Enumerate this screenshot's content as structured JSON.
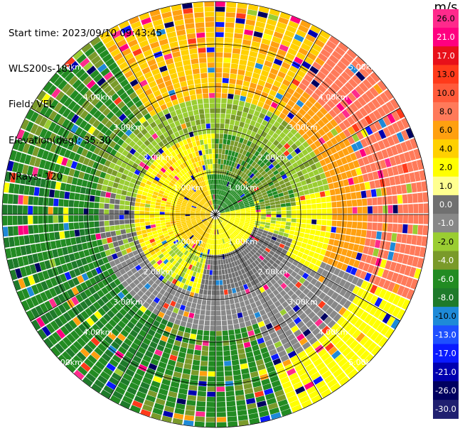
{
  "header": {
    "start_time": "Start time: 2023/09/10 09:43:45",
    "station": "WLS200s-181",
    "field": "Field: VEL",
    "elevation": "Elevation(deg): 35.30",
    "nrays": "NRays: 120"
  },
  "colorbar": {
    "unit": "m/s",
    "ticks": [
      "26.0",
      "21.0",
      "17.0",
      "13.0",
      "10.0",
      "8.0",
      "6.0",
      "4.0",
      "2.0",
      "1.0",
      "0.0",
      "-1.0",
      "-2.0",
      "-4.0",
      "-6.0",
      "-8.0",
      "-10.0",
      "-13.0",
      "-17.0",
      "-21.0",
      "-26.0",
      "-30.0"
    ],
    "colors": [
      "#ff2a8c",
      "#ff0080",
      "#e8101a",
      "#ff3a1a",
      "#ff5a3a",
      "#ff7a5a",
      "#ffa010",
      "#ffd000",
      "#ffff00",
      "#ffff90",
      "#707070",
      "#888888",
      "#9acd32",
      "#7a9a2a",
      "#228b22",
      "#1e7a2a",
      "#1e8ad8",
      "#1e50ff",
      "#0a1aff",
      "#0000b0",
      "#000060",
      "#202070"
    ]
  },
  "chart_data": {
    "type": "heatmap",
    "projection": "polar PPI",
    "field": "VEL",
    "unit": "m/s",
    "nrays": 120,
    "elevation_deg": 35.3,
    "max_range_km": 5.0,
    "range_ring_labels": [
      "1.00km",
      "2.00km",
      "3.00km",
      "4.00km",
      "5.00km"
    ],
    "sectors_dominant_velocity": [
      {
        "sector": "north",
        "inner_km": [
          1.0,
          3.0
        ],
        "value_ms": -4.0
      },
      {
        "sector": "north",
        "inner_km": [
          3.0,
          5.0
        ],
        "value_ms": 4.0
      },
      {
        "sector": "northeast",
        "inner_km": [
          3.0,
          5.0
        ],
        "value_ms": 8.0
      },
      {
        "sector": "east",
        "inner_km": [
          1.5,
          5.0
        ],
        "value_ms": 8.0
      },
      {
        "sector": "west",
        "inner_km": [
          0.5,
          1.8
        ],
        "value_ms": 2.0
      },
      {
        "sector": "west",
        "inner_km": [
          3.0,
          5.0
        ],
        "value_ms": -6.0
      },
      {
        "sector": "south",
        "inner_km": [
          1.5,
          5.0
        ],
        "value_ms": -6.0
      },
      {
        "sector": "center",
        "inner_km": [
          0.0,
          1.0
        ],
        "value_ms": 4.0
      }
    ]
  }
}
